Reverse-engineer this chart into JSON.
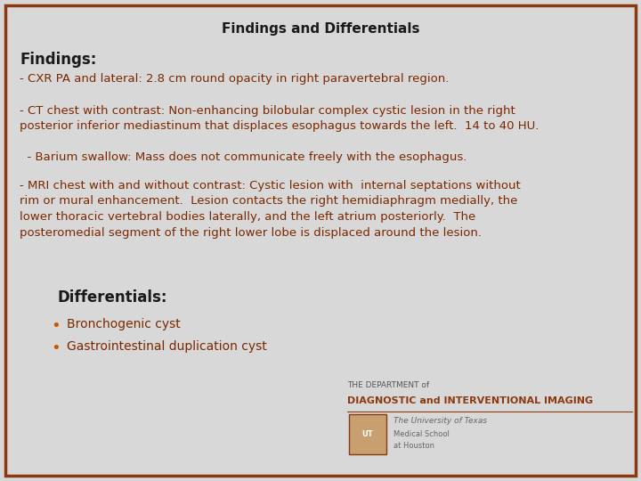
{
  "title": "Findings and Differentials",
  "background_color": "#d8d8d8",
  "border_color": "#8B3A0F",
  "title_color": "#1a1a1a",
  "title_fontsize": 11,
  "findings_header": "Findings:",
  "findings_header_color": "#1a1a1a",
  "findings_header_fontsize": 12,
  "body_color": "#7B2800",
  "body_fontsize": 9.5,
  "findings_lines": [
    "- CXR PA and lateral: 2.8 cm round opacity in right paravertebral region.",
    "- CT chest with contrast: Non-enhancing bilobular complex cystic lesion in the right\nposterior inferior mediastinum that displaces esophagus towards the left.  14 to 40 HU.",
    "  - Barium swallow: Mass does not communicate freely with the esophagus.",
    "- MRI chest with and without contrast: Cystic lesion with  internal septations without\nrim or mural enhancement.  Lesion contacts the right hemidiaphragm medially, the\nlower thoracic vertebral bodies laterally, and the left atrium posteriorly.  The\nposteromedial segment of the right lower lobe is displaced around the lesion."
  ],
  "differentials_header": "Differentials:",
  "differentials_header_color": "#1a1a1a",
  "differentials_header_fontsize": 12,
  "differentials_items": [
    "Bronchogenic cyst",
    "Gastrointestinal duplication cyst"
  ],
  "bullet_color": "#cc5500",
  "differentials_color": "#7B2800",
  "differentials_fontsize": 10,
  "logo_text_1": "THE DEPARTMENT of",
  "logo_text_2": "DIAGNOSTIC and INTERVENTIONAL IMAGING",
  "logo_text_3": "The University of Texas",
  "logo_text_4": "Medical School",
  "logo_text_5": "at Houston",
  "logo_color_1": "#555555",
  "logo_color_2": "#8B3A0F",
  "logo_color_3": "#666666"
}
